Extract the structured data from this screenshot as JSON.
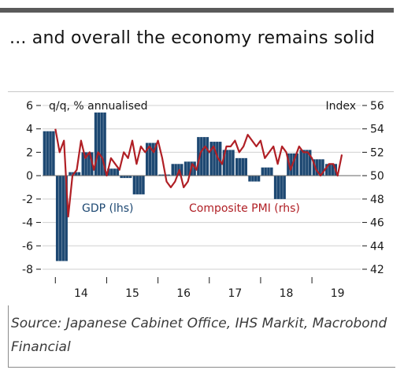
{
  "title": "... and overall the economy remains solid",
  "source": "Source: Japanese Cabinet Office, IHS Markit, Macrobond Financial",
  "colors": {
    "gdp": "#1d4872",
    "pmi": "#b01f25",
    "grid": "#d0d0d0"
  },
  "chart_data": {
    "type": "bar",
    "left_axis": {
      "label": "q/q, % annualised",
      "ylim": [
        -8,
        6
      ],
      "ticks": [
        "6",
        "4",
        "2",
        "0",
        "-2",
        "-4",
        "-6",
        "-8"
      ]
    },
    "right_axis": {
      "label": "Index",
      "ylim": [
        42,
        56
      ],
      "ticks": [
        "56",
        "54",
        "52",
        "50",
        "48",
        "46",
        "44",
        "42"
      ]
    },
    "x_labels": [
      "14",
      "15",
      "16",
      "17",
      "18",
      "19"
    ],
    "series": [
      {
        "name": "GDP (lhs)",
        "type": "bar",
        "axis": "left",
        "x": [
          2013.875,
          2014.125,
          2014.375,
          2014.625,
          2014.875,
          2015.125,
          2015.375,
          2015.625,
          2015.875,
          2016.125,
          2016.375,
          2016.625,
          2016.875,
          2017.125,
          2017.375,
          2017.625,
          2017.875,
          2018.125,
          2018.375,
          2018.625,
          2018.875,
          2019.125,
          2019.375
        ],
        "values": [
          3.8,
          -7.3,
          0.3,
          2.0,
          5.4,
          0.6,
          -0.2,
          -1.6,
          2.8,
          0.1,
          1.0,
          1.2,
          3.3,
          2.9,
          2.2,
          1.5,
          -0.5,
          0.7,
          -2.0,
          1.9,
          2.2,
          1.4,
          1.0
        ]
      },
      {
        "name": "Composite PMI (rhs)",
        "type": "line",
        "axis": "right",
        "x": [
          2014.0,
          2014.083,
          2014.167,
          2014.25,
          2014.333,
          2014.417,
          2014.5,
          2014.583,
          2014.667,
          2014.75,
          2014.833,
          2014.917,
          2015.0,
          2015.083,
          2015.167,
          2015.25,
          2015.333,
          2015.417,
          2015.5,
          2015.583,
          2015.667,
          2015.75,
          2015.833,
          2015.917,
          2016.0,
          2016.083,
          2016.167,
          2016.25,
          2016.333,
          2016.417,
          2016.5,
          2016.583,
          2016.667,
          2016.75,
          2016.833,
          2016.917,
          2017.0,
          2017.083,
          2017.167,
          2017.25,
          2017.333,
          2017.417,
          2017.5,
          2017.583,
          2017.667,
          2017.75,
          2017.833,
          2017.917,
          2018.0,
          2018.083,
          2018.167,
          2018.25,
          2018.333,
          2018.417,
          2018.5,
          2018.583,
          2018.667,
          2018.75,
          2018.833,
          2018.917,
          2019.0,
          2019.083,
          2019.167,
          2019.25,
          2019.333,
          2019.417,
          2019.5,
          2019.583
        ],
        "values": [
          54.0,
          52.0,
          53.0,
          46.5,
          50.0,
          50.5,
          53.0,
          51.5,
          52.0,
          50.5,
          52.0,
          51.5,
          50.0,
          51.5,
          51.0,
          50.5,
          52.0,
          51.5,
          53.0,
          51.0,
          52.5,
          52.0,
          52.5,
          52.0,
          53.0,
          51.5,
          49.5,
          49.0,
          49.5,
          50.5,
          49.0,
          49.5,
          51.0,
          50.5,
          52.0,
          52.5,
          52.0,
          52.5,
          51.5,
          51.0,
          52.5,
          52.5,
          53.0,
          52.0,
          52.5,
          53.5,
          53.0,
          52.5,
          53.0,
          51.5,
          52.0,
          52.5,
          51.0,
          52.5,
          52.0,
          50.5,
          51.5,
          52.5,
          52.0,
          52.0,
          51.5,
          50.5,
          50.0,
          50.5,
          51.0,
          51.0,
          50.0,
          51.8
        ]
      }
    ],
    "legend": [
      "GDP (lhs)",
      "Composite PMI (rhs)"
    ]
  }
}
